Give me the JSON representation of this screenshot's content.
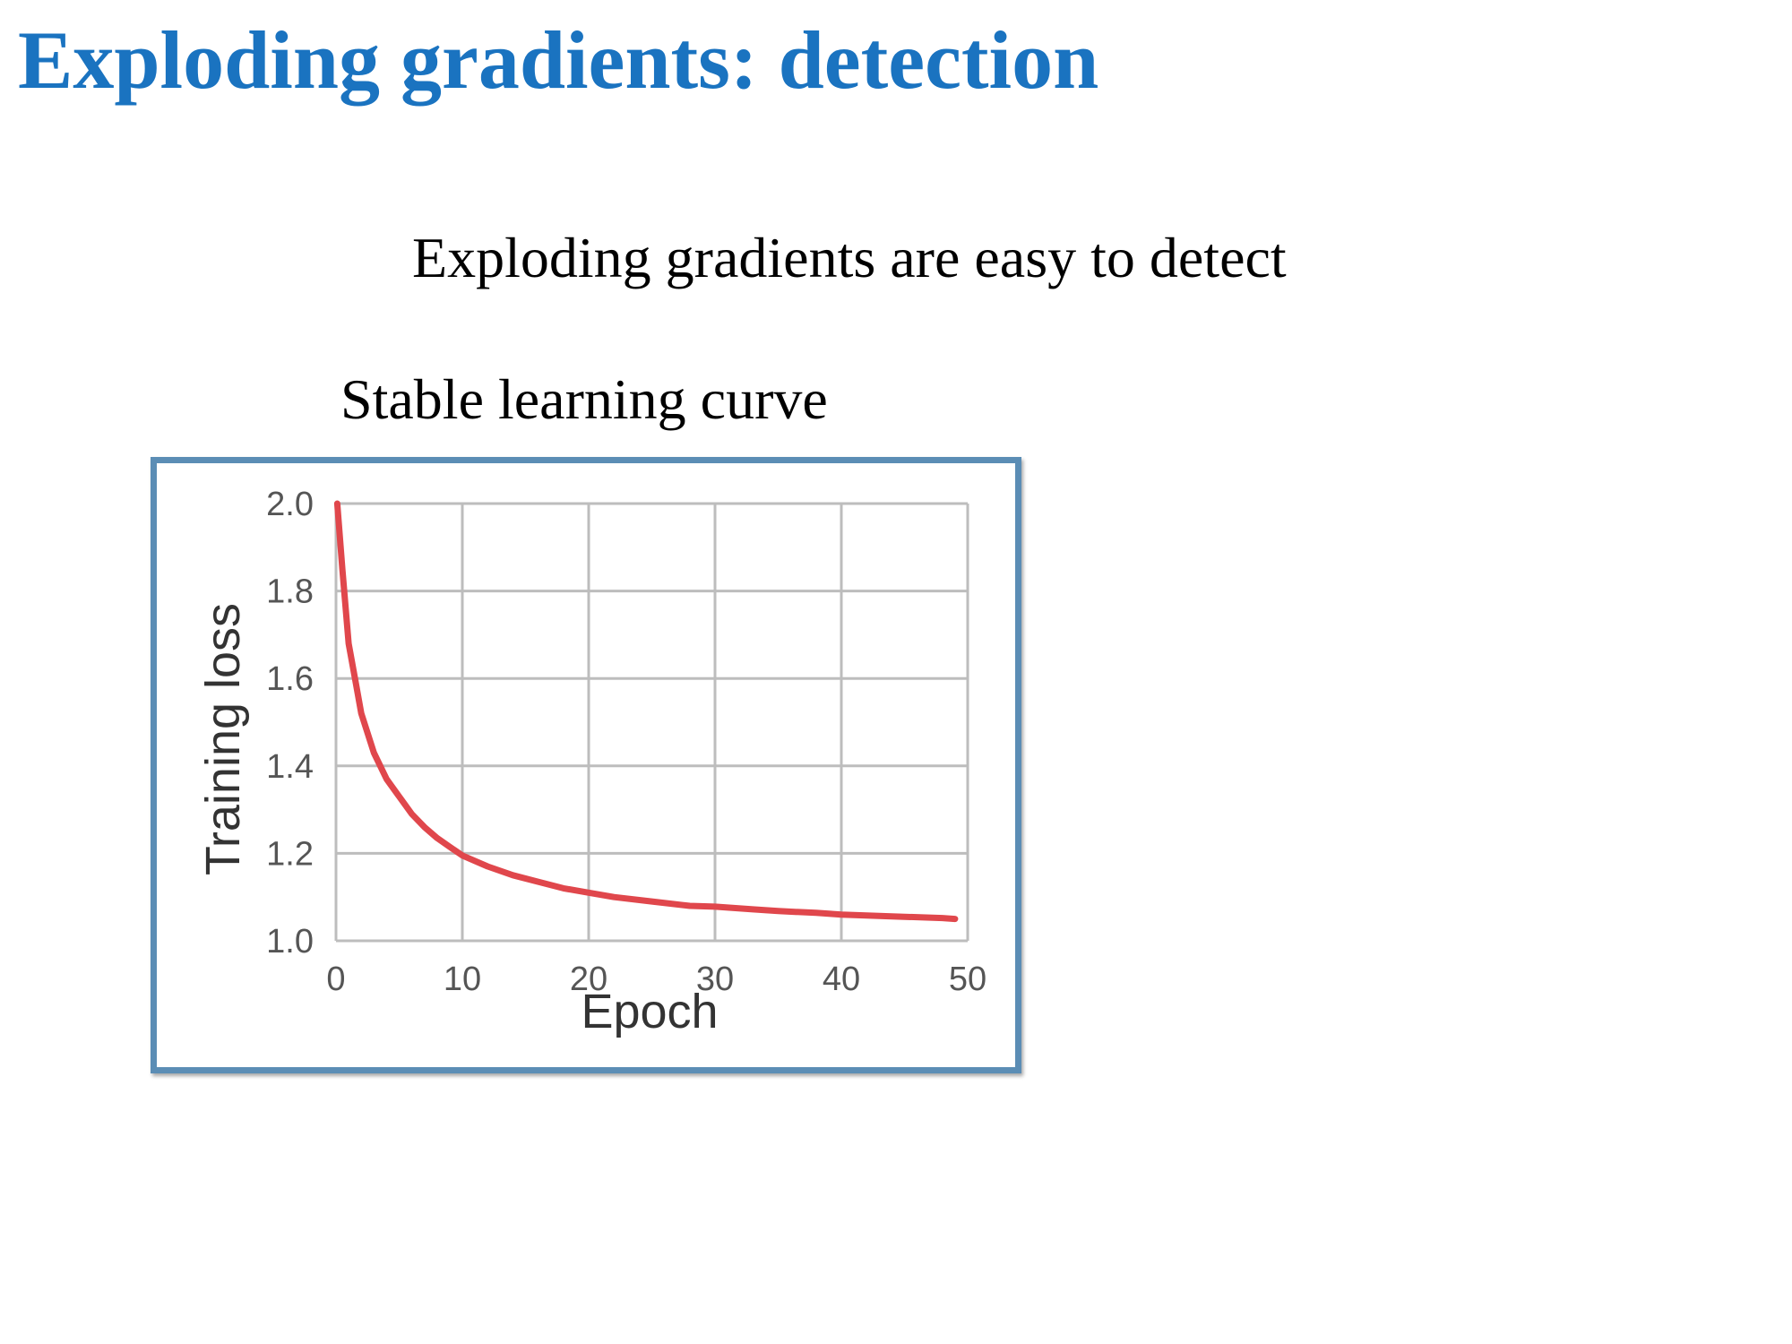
{
  "slide": {
    "title": "Exploding gradients: detection",
    "subtitle": "Exploding gradients are easy to detect",
    "caption": "Stable learning curve"
  },
  "colors": {
    "title": "#1a73c0",
    "frame": "#5b8db5",
    "curve": "#e0474c",
    "grid": "#bdbdbd"
  },
  "chart_data": {
    "type": "line",
    "xlabel": "Epoch",
    "ylabel": "Training loss",
    "xlim": [
      0,
      50
    ],
    "ylim": [
      1.0,
      2.0
    ],
    "xticks": [
      0,
      10,
      20,
      30,
      40,
      50
    ],
    "yticks": [
      1.0,
      1.2,
      1.4,
      1.6,
      1.8,
      2.0
    ],
    "xtick_labels": [
      "0",
      "10",
      "20",
      "30",
      "40",
      "50"
    ],
    "ytick_labels": [
      "1.0",
      "1.2",
      "1.4",
      "1.6",
      "1.8",
      "2.0"
    ],
    "grid": true,
    "legend": false,
    "series": [
      {
        "x": [
          0.1,
          0.5,
          1,
          1.5,
          2,
          3,
          4,
          5,
          6,
          7,
          8,
          9,
          10,
          12,
          14,
          16,
          18,
          20,
          22,
          25,
          28,
          30,
          33,
          35,
          38,
          40,
          43,
          45,
          48,
          49
        ],
        "y": [
          2.0,
          1.85,
          1.68,
          1.6,
          1.52,
          1.43,
          1.37,
          1.33,
          1.29,
          1.26,
          1.235,
          1.215,
          1.195,
          1.17,
          1.15,
          1.135,
          1.12,
          1.11,
          1.1,
          1.09,
          1.08,
          1.078,
          1.072,
          1.068,
          1.064,
          1.06,
          1.057,
          1.055,
          1.052,
          1.05
        ]
      }
    ]
  }
}
